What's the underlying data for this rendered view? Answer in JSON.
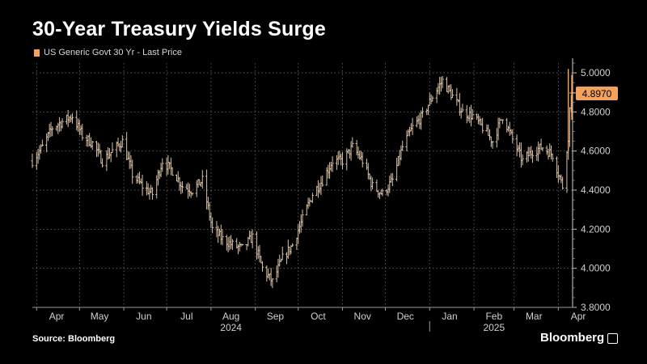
{
  "header": {
    "title": "30-Year Treasury Yields Surge",
    "legend_label": "US Generic Govt 30 Yr - Last Price"
  },
  "footer": {
    "source": "Source: Bloomberg",
    "brand": "Bloomberg"
  },
  "colors": {
    "background": "#000000",
    "series": "#f2a25c",
    "grid": "#6b6b6b",
    "text": "#ffffff",
    "axis_text": "#d0d0d0"
  },
  "chart_data": {
    "type": "candlestick",
    "title": "30-Year Treasury Yields Surge",
    "series": [
      {
        "name": "US Generic Govt 30 Yr - Last Price",
        "x": [
          "2024-03-29",
          "2024-04-05",
          "2024-04-12",
          "2024-04-19",
          "2024-04-26",
          "2024-05-03",
          "2024-05-10",
          "2024-05-17",
          "2024-05-24",
          "2024-05-31",
          "2024-06-07",
          "2024-06-14",
          "2024-06-21",
          "2024-06-28",
          "2024-07-05",
          "2024-07-12",
          "2024-07-19",
          "2024-07-26",
          "2024-08-02",
          "2024-08-09",
          "2024-08-16",
          "2024-08-23",
          "2024-08-30",
          "2024-09-06",
          "2024-09-13",
          "2024-09-20",
          "2024-09-27",
          "2024-10-04",
          "2024-10-11",
          "2024-10-18",
          "2024-10-25",
          "2024-11-01",
          "2024-11-08",
          "2024-11-15",
          "2024-11-22",
          "2024-11-29",
          "2024-12-06",
          "2024-12-13",
          "2024-12-20",
          "2024-12-27",
          "2025-01-03",
          "2025-01-10",
          "2025-01-17",
          "2025-01-24",
          "2025-01-31",
          "2025-02-07",
          "2025-02-14",
          "2025-02-21",
          "2025-02-28",
          "2025-03-07",
          "2025-03-14",
          "2025-03-21",
          "2025-03-28",
          "2025-04-04",
          "2025-04-08",
          "2025-04-09",
          "2025-04-11"
        ],
        "values": [
          4.55,
          4.62,
          4.72,
          4.75,
          4.78,
          4.68,
          4.64,
          4.55,
          4.6,
          4.65,
          4.48,
          4.42,
          4.38,
          4.55,
          4.5,
          4.42,
          4.4,
          4.45,
          4.2,
          4.15,
          4.12,
          4.1,
          4.16,
          4.0,
          3.93,
          4.05,
          4.12,
          4.25,
          4.38,
          4.45,
          4.55,
          4.55,
          4.62,
          4.55,
          4.42,
          4.38,
          4.45,
          4.62,
          4.72,
          4.78,
          4.88,
          4.96,
          4.88,
          4.8,
          4.78,
          4.72,
          4.65,
          4.78,
          4.66,
          4.55,
          4.6,
          4.62,
          4.58,
          4.42,
          4.65,
          4.82,
          4.897
        ]
      }
    ],
    "ylim": [
      3.8,
      5.05
    ],
    "yticks": [
      "5.0000",
      "4.8000",
      "4.6000",
      "4.4000",
      "4.2000",
      "4.0000",
      "3.8000"
    ],
    "ytick_values": [
      5.0,
      4.8,
      4.6,
      4.4,
      4.2,
      4.0,
      3.8
    ],
    "xticks": [
      "Apr",
      "May",
      "Jun",
      "Jul",
      "Aug",
      "Sep",
      "Oct",
      "Nov",
      "Dec",
      "Jan",
      "Feb",
      "Mar",
      "Apr"
    ],
    "xtick_dates": [
      "2024-04-15",
      "2024-05-15",
      "2024-06-15",
      "2024-07-15",
      "2024-08-15",
      "2024-09-15",
      "2024-10-15",
      "2024-11-15",
      "2024-12-15",
      "2025-01-15",
      "2025-02-15",
      "2025-03-15",
      "2025-04-15"
    ],
    "year_labels": [
      "2024",
      "2025"
    ],
    "year_label_dates": [
      "2024-08-15",
      "2025-02-15"
    ],
    "year_divider_date": "2025-01-01",
    "last_value_label": "4.8970",
    "last_value": 4.897,
    "grid": true
  }
}
